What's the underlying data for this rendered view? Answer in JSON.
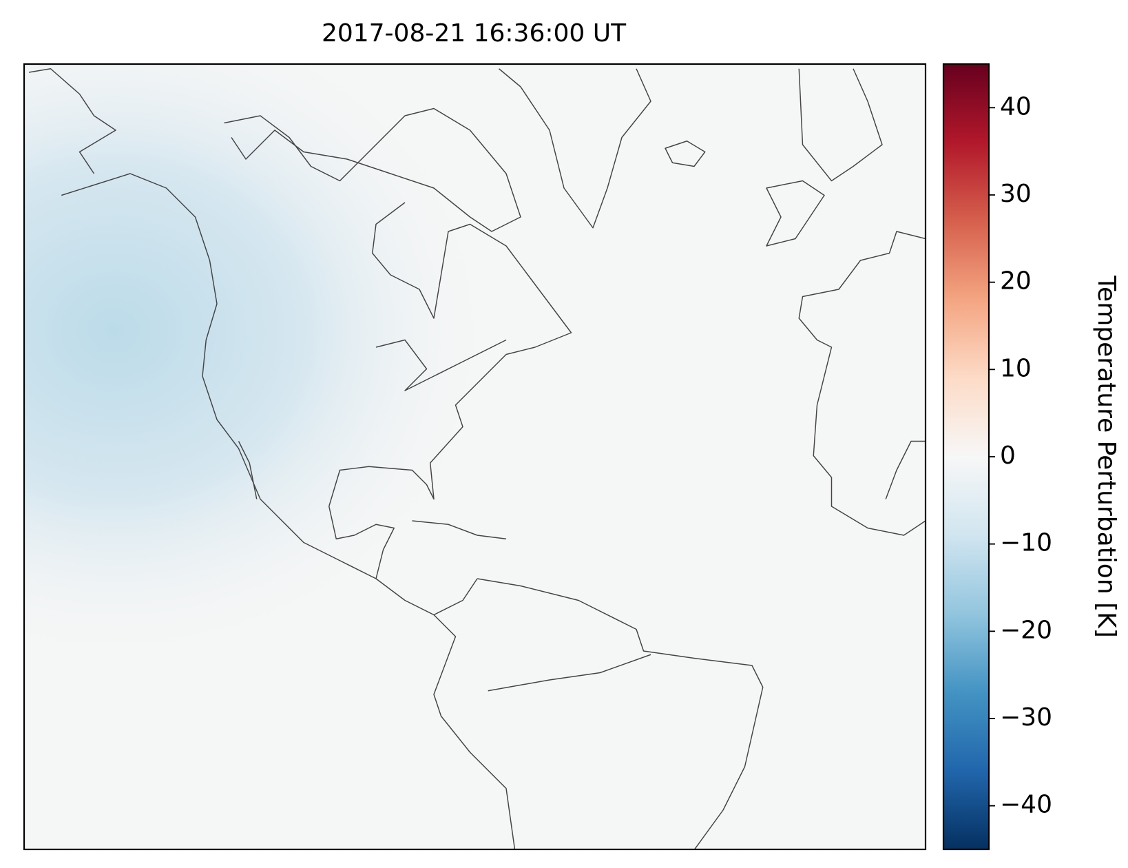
{
  "chart_data": {
    "type": "map",
    "title": "2017-08-21 16:36:00 UT",
    "colorbar": {
      "label": "Temperature Perturbation [K]",
      "colormap": "RdBu_r",
      "lim": [
        -45,
        45
      ],
      "ticks": [
        {
          "value": -40,
          "label": "−40"
        },
        {
          "value": -30,
          "label": "−30"
        },
        {
          "value": -20,
          "label": "−20"
        },
        {
          "value": -10,
          "label": "−10"
        },
        0,
        10,
        20,
        30,
        40
      ]
    }
  }
}
